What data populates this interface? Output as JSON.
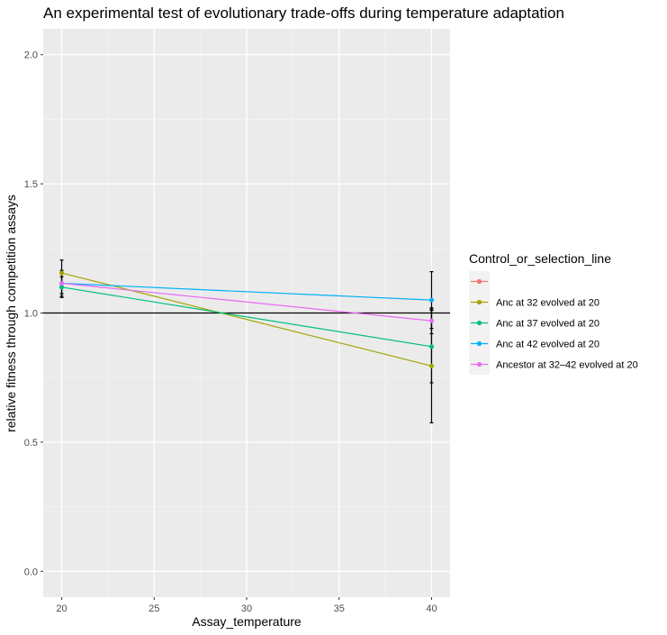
{
  "chart_data": {
    "type": "line",
    "title": "An experimental test of evolutionary trade-offs during temperature adaptation",
    "xlabel": "Assay_temperature",
    "ylabel": "relative fitness through competition assays",
    "xlim": [
      19,
      41
    ],
    "ylim": [
      -0.1,
      2.1
    ],
    "x_ticks": [
      20,
      25,
      30,
      35,
      40
    ],
    "y_ticks": [
      0.0,
      0.5,
      1.0,
      1.5,
      2.0
    ],
    "x_tick_labels": [
      "20",
      "25",
      "30",
      "35",
      "40"
    ],
    "y_tick_labels": [
      "0.0",
      "0.5",
      "1.0",
      "1.5",
      "2.0"
    ],
    "hline": 1.0,
    "grid": true,
    "legend_title": "Control_or_selection_line",
    "legend_position": "right",
    "series": [
      {
        "name": "",
        "color": "#F8766D",
        "x": [],
        "y": [],
        "err": []
      },
      {
        "name": "Anc at 32 evolved at 20",
        "color": "#A3A500",
        "x": [
          20,
          40
        ],
        "y": [
          1.155,
          0.795
        ],
        "err": [
          0.05,
          0.22
        ]
      },
      {
        "name": "Anc at 37 evolved at 20",
        "color": "#00BF7D",
        "x": [
          20,
          40
        ],
        "y": [
          1.1,
          0.87
        ],
        "err": [
          0.04,
          0.14
        ]
      },
      {
        "name": "Anc at 42 evolved at 20",
        "color": "#00B0F6",
        "x": [
          20,
          40
        ],
        "y": [
          1.115,
          1.05
        ],
        "err": [
          0.05,
          0.11
        ]
      },
      {
        "name": "Ancestor at 32–42 evolved at 20",
        "color": "#E76BF3",
        "x": [
          20,
          40
        ],
        "y": [
          1.115,
          0.97
        ],
        "err": [
          0.04,
          0.05
        ]
      }
    ]
  }
}
